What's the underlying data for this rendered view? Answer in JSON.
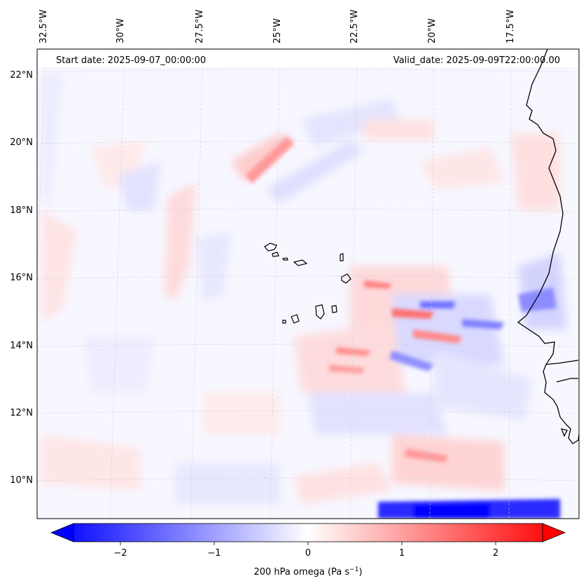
{
  "header": {
    "start_date": "Start date: 2025-09-07_00:00:00",
    "valid_date": "Valid_date: 2025-09-09T22:00:00.00"
  },
  "lon_labels": [
    "32.5°W",
    "30°W",
    "27.5°W",
    "25°W",
    "22.5°W",
    "20°W",
    "17.5°W"
  ],
  "lat_labels": [
    "22°N",
    "20°N",
    "18°N",
    "16°N",
    "14°N",
    "12°N",
    "10°N"
  ],
  "colorbar": {
    "label": "200 hPa omega (Pa s",
    "label_sup": "−1",
    "label_end": ")",
    "ticks": [
      "−2",
      "−1",
      "0",
      "1",
      "2"
    ],
    "tick_values": [
      -2,
      -1,
      0,
      1,
      2
    ],
    "range": [
      -2.5,
      2.5
    ],
    "colormap": "bwr",
    "extend": "both",
    "neg_color": "#0000ff",
    "zero_color": "#ffffff",
    "pos_color": "#ff0000"
  },
  "map": {
    "projection": "lambert-conformal",
    "lon_range": [
      -33,
      -14.5
    ],
    "lat_range": [
      9,
      22.5
    ],
    "gridlines": "dashed-light-gray",
    "coastline_color": "#000000",
    "features": [
      "Cape Verde islands",
      "West African coast (Senegal, Gambia)"
    ]
  }
}
